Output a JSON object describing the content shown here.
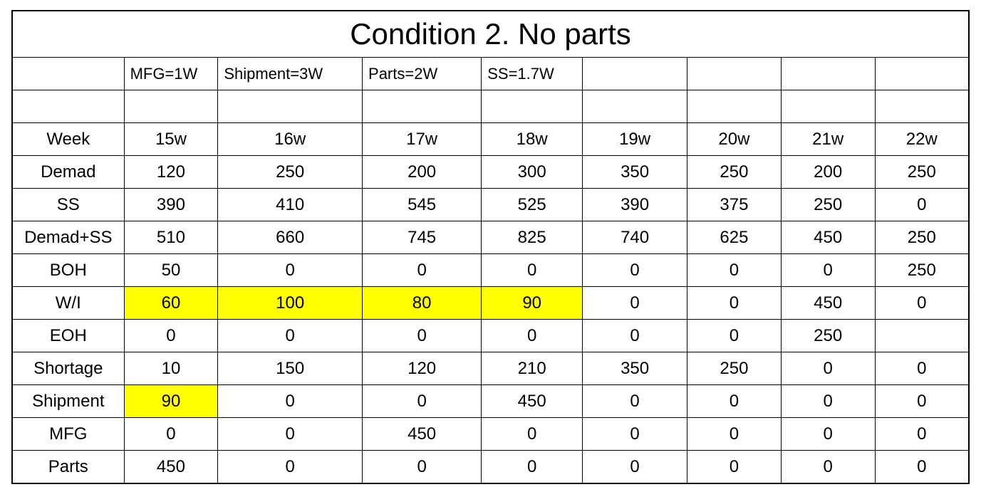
{
  "title": "Condition 2. No parts",
  "params": [
    "MFG=1W",
    "Shipment=3W",
    "Parts=2W",
    "SS=1.7W"
  ],
  "columns": [
    "Week",
    "15w",
    "16w",
    "17w",
    "18w",
    "19w",
    "20w",
    "21w",
    "22w"
  ],
  "rows": [
    {
      "label": "Demad",
      "cells": [
        "120",
        "250",
        "200",
        "300",
        "350",
        "250",
        "200",
        "250"
      ],
      "hl": []
    },
    {
      "label": "SS",
      "cells": [
        "390",
        "410",
        "545",
        "525",
        "390",
        "375",
        "250",
        "0"
      ],
      "hl": []
    },
    {
      "label": "Demad+SS",
      "cells": [
        "510",
        "660",
        "745",
        "825",
        "740",
        "625",
        "450",
        "250"
      ],
      "hl": []
    },
    {
      "label": "BOH",
      "cells": [
        "50",
        "0",
        "0",
        "0",
        "0",
        "0",
        "0",
        "250"
      ],
      "hl": []
    },
    {
      "label": "W/I",
      "cells": [
        "60",
        "100",
        "80",
        "90",
        "0",
        "0",
        "450",
        "0"
      ],
      "hl": [
        0,
        1,
        2,
        3
      ]
    },
    {
      "label": "EOH",
      "cells": [
        "0",
        "0",
        "0",
        "0",
        "0",
        "0",
        "250",
        ""
      ],
      "hl": []
    },
    {
      "label": "Shortage",
      "cells": [
        "10",
        "150",
        "120",
        "210",
        "350",
        "250",
        "0",
        "0"
      ],
      "hl": []
    },
    {
      "label": "Shipment",
      "cells": [
        "90",
        "0",
        "0",
        "450",
        "0",
        "0",
        "0",
        "0"
      ],
      "hl": [
        0
      ]
    },
    {
      "label": "MFG",
      "cells": [
        "0",
        "0",
        "450",
        "0",
        "0",
        "0",
        "0",
        "0"
      ],
      "hl": []
    },
    {
      "label": "Parts",
      "cells": [
        "450",
        "0",
        "0",
        "0",
        "0",
        "0",
        "0",
        "0"
      ],
      "hl": []
    }
  ],
  "style": {
    "highlight_color": "#ffff00",
    "border_color": "#000000",
    "background_color": "#ffffff",
    "title_fontsize": 42,
    "cell_fontsize": 24,
    "param_fontsize": 22,
    "font_family": "Segoe UI"
  }
}
